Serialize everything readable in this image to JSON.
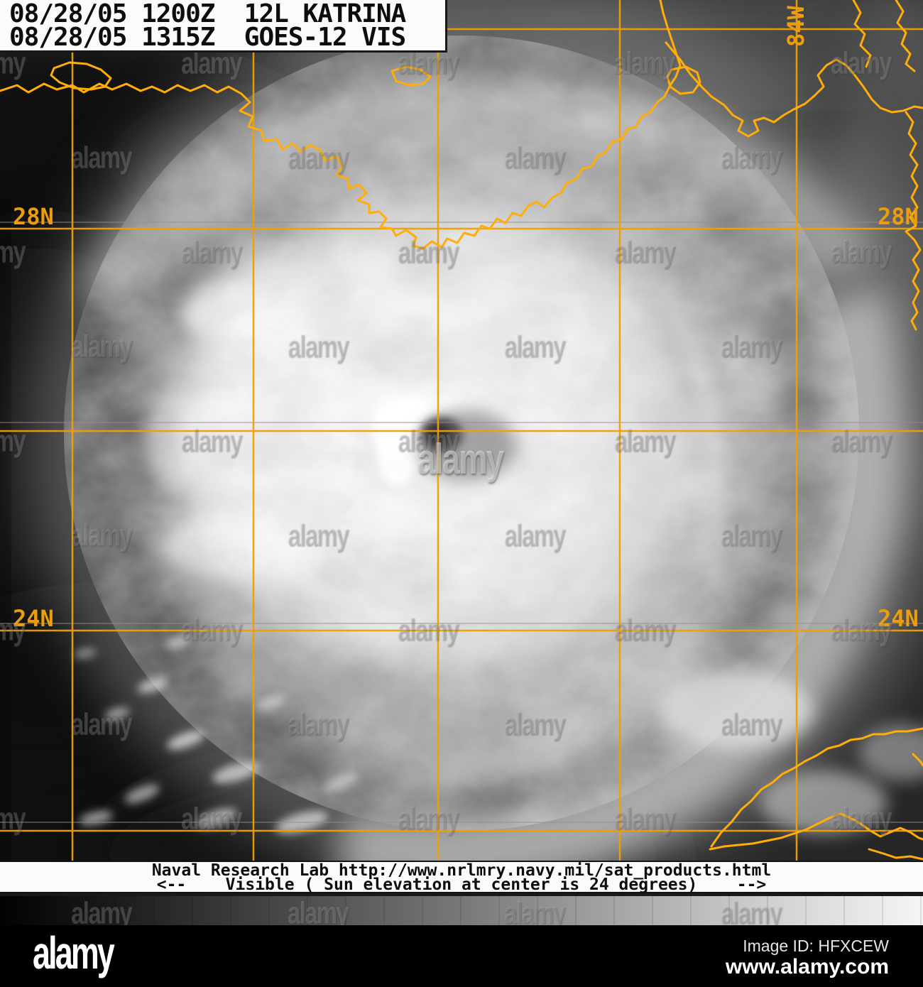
{
  "header": {
    "line1": "08/28/05 1200Z  12L KATRINA",
    "line2": "08/28/05 1315Z  GOES-12 VIS"
  },
  "map": {
    "labels": {
      "lat_28": "28N",
      "lat_24": "24N",
      "lon_84": "84W"
    },
    "grid_color": "#ef9f06",
    "coast_color": "#ffae08"
  },
  "credit": {
    "line1": "Naval Research Lab http://www.nrlmry.navy.mil/sat_products.html",
    "line2": "<--    Visible ( Sun elevation at center is 24 degrees)    -->"
  },
  "watermark": {
    "tile_text": "alamy"
  },
  "footer": {
    "logo": "alamy",
    "image_id": "Image ID: HFXCEW",
    "site_url": "www.alamy.com"
  }
}
